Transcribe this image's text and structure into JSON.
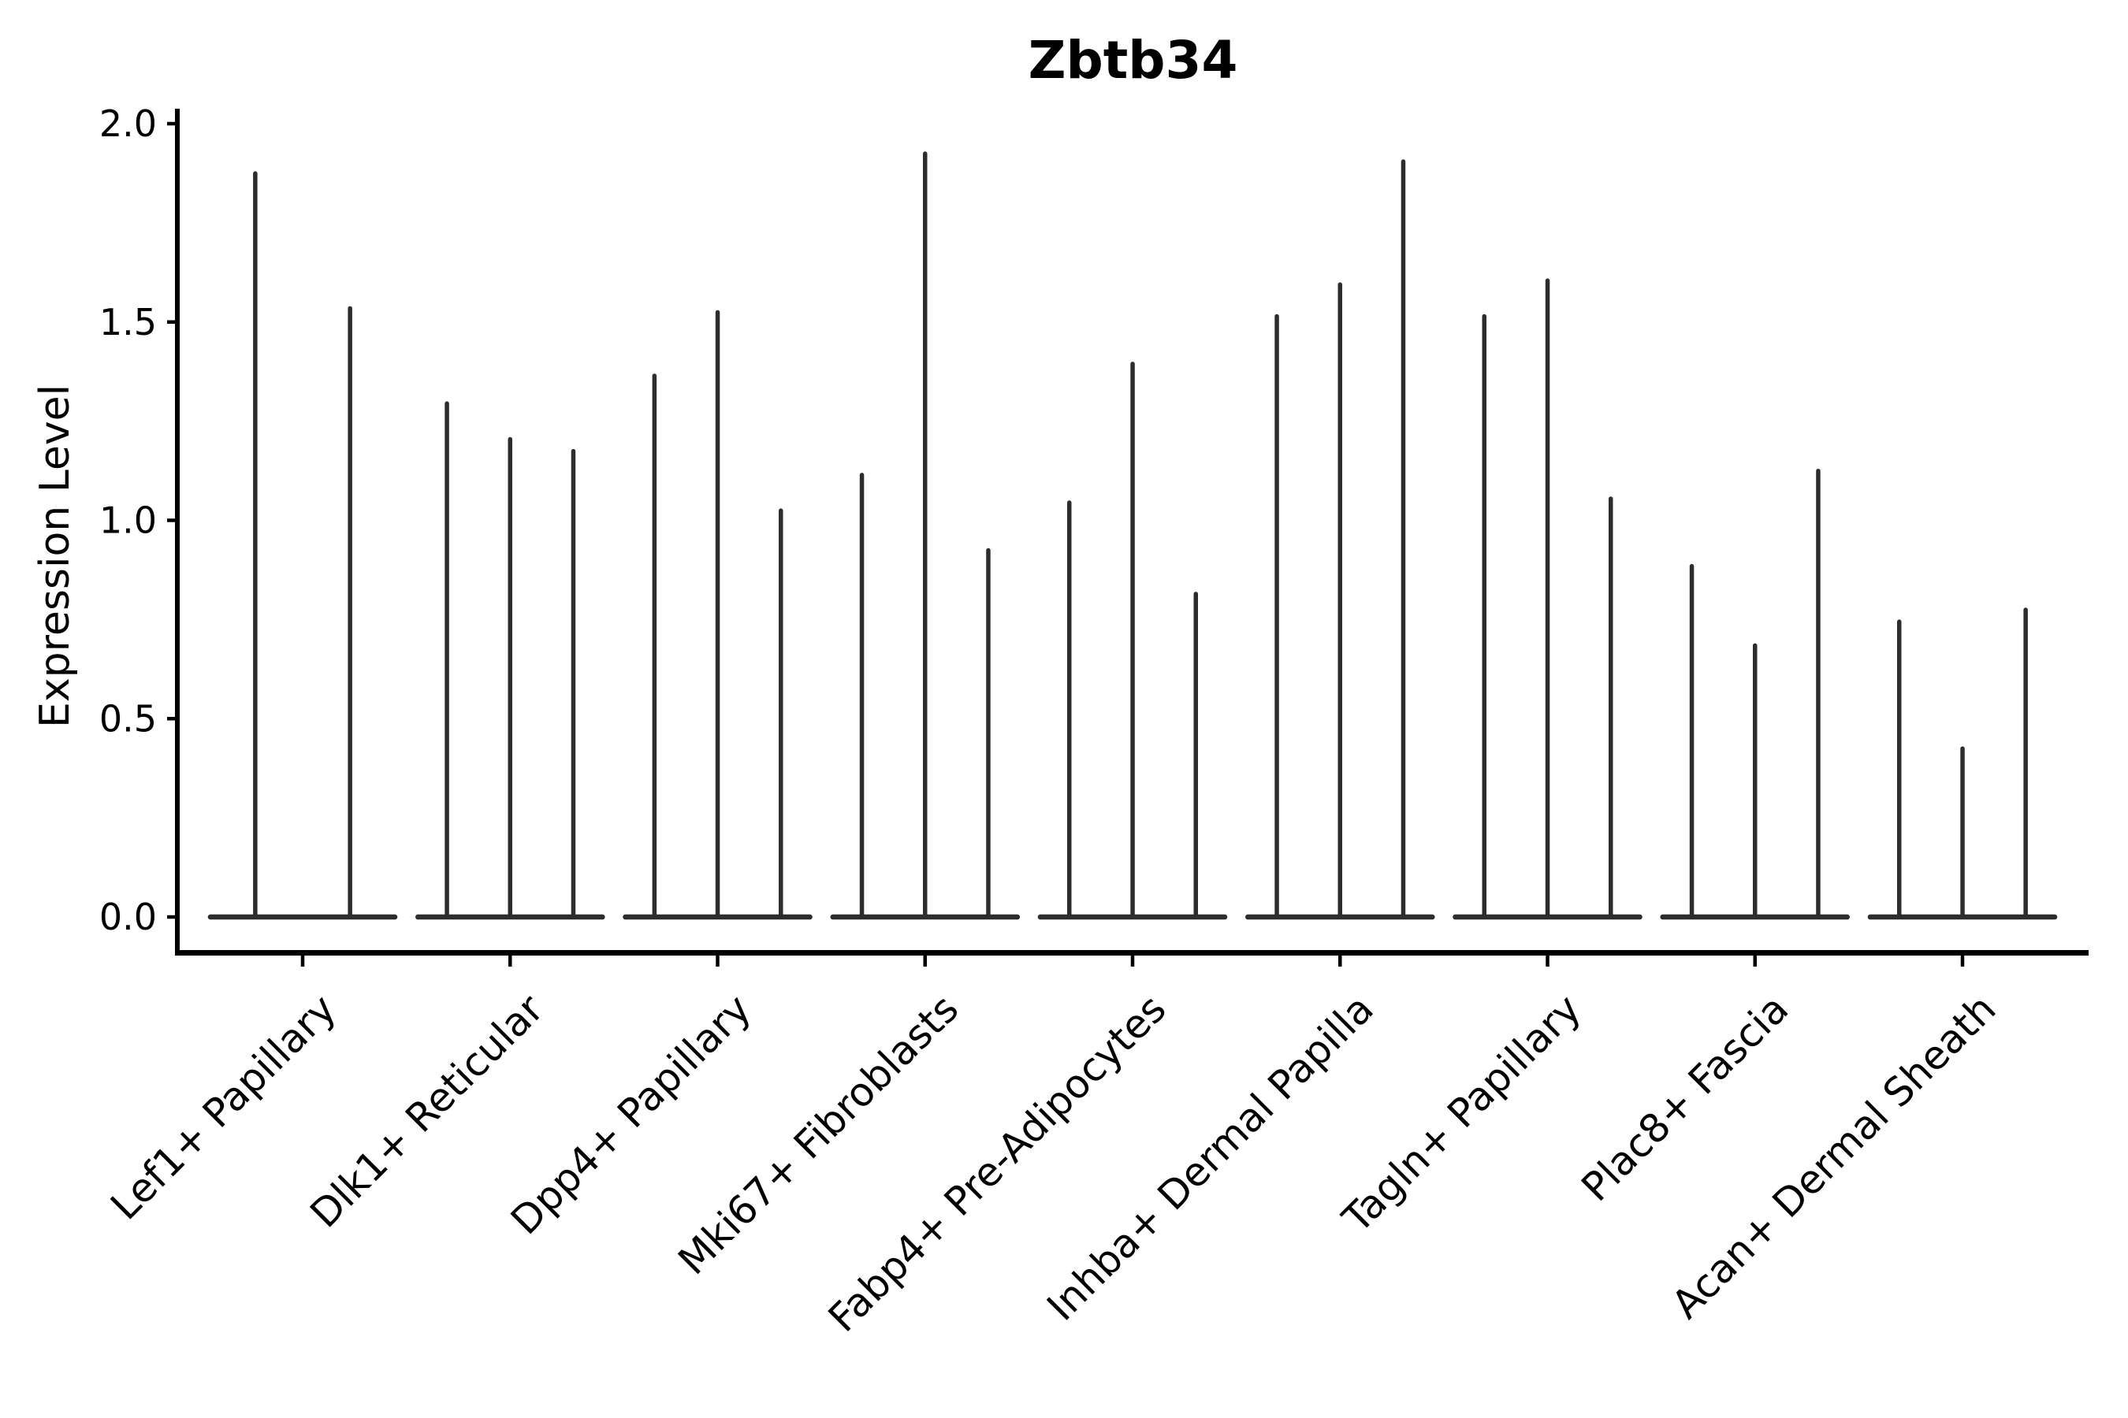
{
  "title": "Zbtb34",
  "y_axis": {
    "label": "Expression Level",
    "tick_labels": [
      "0.0",
      "0.5",
      "1.0",
      "1.5",
      "2.0"
    ],
    "tick_values": [
      0.0,
      0.5,
      1.0,
      1.5,
      2.0
    ]
  },
  "chart_data": {
    "type": "violin",
    "title": "Zbtb34",
    "xlabel": "",
    "ylabel": "Expression Level",
    "ylim": [
      0.0,
      2.0
    ],
    "yticks": [
      0.0,
      0.5,
      1.0,
      1.5,
      2.0
    ],
    "ytick_labels": [
      "0.0",
      "0.5",
      "1.0",
      "1.5",
      "2.0"
    ],
    "grid": false,
    "legend": false,
    "x_tick_label_rotation_deg": 45,
    "categories": [
      "Lef1+ Papillary",
      "Dlk1+ Reticular",
      "Dpp4+ Papillary",
      "Mki67+ Fibroblasts",
      "Fabp4+ Pre-Adipocytes",
      "Inhba+ Dermal Papilla",
      "Tagln+ Papillary",
      "Plac8+ Fascia",
      "Acan+ Dermal Sheath"
    ],
    "groups": [
      {
        "category": "Lef1+ Papillary",
        "violin_max": [
          1.88,
          1.54
        ]
      },
      {
        "category": "Dlk1+ Reticular",
        "violin_max": [
          1.3,
          1.21,
          1.18
        ]
      },
      {
        "category": "Dpp4+ Papillary",
        "violin_max": [
          1.37,
          1.53,
          1.03
        ]
      },
      {
        "category": "Mki67+ Fibroblasts",
        "violin_max": [
          1.12,
          1.93,
          0.93
        ]
      },
      {
        "category": "Fabp4+ Pre-Adipocytes",
        "violin_max": [
          1.05,
          1.4,
          0.82
        ]
      },
      {
        "category": "Inhba+ Dermal Papilla",
        "violin_max": [
          1.52,
          1.6,
          1.91
        ]
      },
      {
        "category": "Tagln+ Papillary",
        "violin_max": [
          1.52,
          1.61,
          1.06
        ]
      },
      {
        "category": "Plac8+ Fascia",
        "violin_max": [
          0.89,
          0.69,
          1.13
        ]
      },
      {
        "category": "Acan+ Dermal Sheath",
        "violin_max": [
          0.75,
          0.43,
          0.78
        ]
      }
    ],
    "violin_shape_note": "each violin is a flat wide base at 0 with a thin rounded spike rising to its maximum"
  },
  "style": {
    "background": "#ffffff",
    "ink": "#000000",
    "violin_color": "#2d2d2d"
  }
}
